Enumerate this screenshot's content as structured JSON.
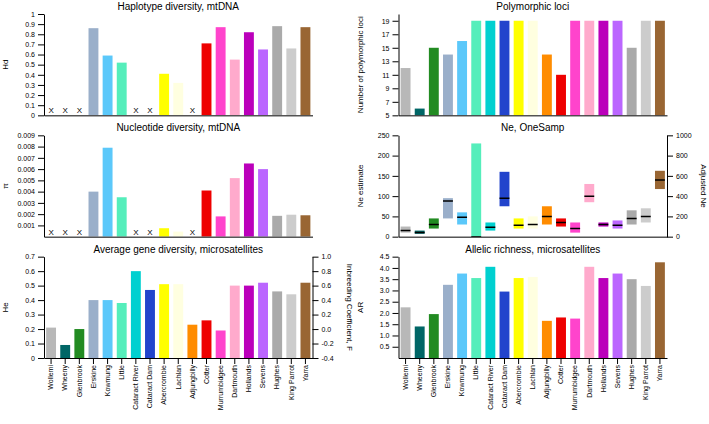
{
  "chart_data": [
    {
      "type": "bar",
      "title": "Haplotype diversity, mtDNA",
      "ylabel": "Hd",
      "categories": [
        "Wollemi",
        "Wheeny",
        "Glenbrook",
        "Erskine",
        "Kowmung",
        "Little",
        "Cataract River",
        "Cataract Dam",
        "Abercrombie",
        "Lachlan",
        "Adjungbilly",
        "Cotter",
        "Murrumbidgee",
        "Dartmouth",
        "Hollands",
        "Sevens",
        "Hughes",
        "King Parrot",
        "Yarra"
      ],
      "values": [
        0,
        0,
        0,
        0.86,
        0.59,
        0.52,
        0,
        0,
        0.41,
        0.32,
        0,
        0.71,
        0.87,
        0.55,
        0.82,
        0.65,
        0.88,
        0.66,
        0.87
      ],
      "colors": [
        "#b8b8b8",
        "#006666",
        "#228b22",
        "#9aafca",
        "#5bc8fa",
        "#55eebb",
        "#00d0d0",
        "#2244cc",
        "#ffff00",
        "#ffffe0",
        "#ff8c00",
        "#ee0000",
        "#ff44cc",
        "#ffaacc",
        "#bb00bb",
        "#bb66ff",
        "#aaaaaa",
        "#cccccc",
        "#996633"
      ],
      "ylim": [
        0,
        1
      ],
      "yticks": [
        0,
        0.1,
        0.2,
        0.3,
        0.4,
        0.5,
        0.6,
        0.7,
        0.8,
        0.9,
        1
      ],
      "tick_labels": "y",
      "annotations": [
        {
          "text": "X",
          "category": "Wollemi"
        },
        {
          "text": "X",
          "category": "Wheeny"
        },
        {
          "text": "X",
          "category": "Glenbrook"
        },
        {
          "text": "X",
          "category": "Cataract River"
        },
        {
          "text": "X",
          "category": "Cataract Dam"
        },
        {
          "text": "X",
          "category": "Adjungbilly"
        }
      ]
    },
    {
      "type": "bar",
      "title": "Nucleotide diversity, mtDNA",
      "ylabel": "π",
      "categories": [
        "Wollemi",
        "Wheeny",
        "Glenbrook",
        "Erskine",
        "Kowmung",
        "Little",
        "Cataract River",
        "Cataract Dam",
        "Abercrombie",
        "Lachlan",
        "Adjungbilly",
        "Cotter",
        "Murrumbidgee",
        "Dartmouth",
        "Hollands",
        "Sevens",
        "Hughes",
        "King Parrot",
        "Yarra"
      ],
      "values": [
        0,
        0,
        0,
        0.004,
        0.0079,
        0.0035,
        0,
        0,
        0.00075,
        0.00045,
        0,
        0.0041,
        0.0018,
        0.0052,
        0.0065,
        0.006,
        0.00185,
        0.00195,
        0.0019
      ],
      "colors": [
        "#b8b8b8",
        "#006666",
        "#228b22",
        "#9aafca",
        "#5bc8fa",
        "#55eebb",
        "#00d0d0",
        "#2244cc",
        "#ffff00",
        "#ffffe0",
        "#ff8c00",
        "#ee0000",
        "#ff44cc",
        "#ffaacc",
        "#bb00bb",
        "#bb66ff",
        "#aaaaaa",
        "#cccccc",
        "#996633"
      ],
      "ylim": [
        0,
        0.009
      ],
      "yticks": [
        0.001,
        0.002,
        0.003,
        0.004,
        0.005,
        0.006,
        0.007,
        0.008,
        0.009
      ],
      "tick_labels": "y",
      "annotations": [
        {
          "text": "X",
          "category": "Wollemi"
        },
        {
          "text": "X",
          "category": "Wheeny"
        },
        {
          "text": "X",
          "category": "Glenbrook"
        },
        {
          "text": "X",
          "category": "Cataract River"
        },
        {
          "text": "X",
          "category": "Cataract Dam"
        },
        {
          "text": "X",
          "category": "Adjungbilly"
        }
      ]
    },
    {
      "type": "bar",
      "title": "Average gene diversity, microsatellites",
      "ylabel": "He",
      "y2label": "Inbreeding Coefficient, F",
      "categories": [
        "Wollemi",
        "Wheeny",
        "Glenbrook",
        "Erskine",
        "Kowmung",
        "Little",
        "Cataract River",
        "Cataract Dam",
        "Abercrombie",
        "Lachlan",
        "Adjungbilly",
        "Cotter",
        "Murrumbidgee",
        "Dartmouth",
        "Hollands",
        "Sevens",
        "Hughes",
        "King Parrot",
        "Yarra"
      ],
      "values": [
        0.21,
        0.09,
        0.2,
        0.4,
        0.4,
        0.38,
        0.6,
        0.47,
        0.51,
        0.51,
        0.23,
        0.26,
        0.19,
        0.5,
        0.5,
        0.52,
        0.46,
        0.44,
        0.52
      ],
      "colors": [
        "#b8b8b8",
        "#006666",
        "#228b22",
        "#9aafca",
        "#5bc8fa",
        "#55eebb",
        "#00d0d0",
        "#2244cc",
        "#ffff00",
        "#ffffe0",
        "#ff8c00",
        "#ee0000",
        "#ff44cc",
        "#ffaacc",
        "#bb00bb",
        "#bb66ff",
        "#aaaaaa",
        "#cccccc",
        "#996633"
      ],
      "ylim": [
        0,
        0.7
      ],
      "yticks": [
        0,
        0.1,
        0.2,
        0.3,
        0.4,
        0.5,
        0.6,
        0.7
      ],
      "y2lim": [
        -0.4,
        1
      ],
      "y2ticks": [
        -0.4,
        -0.2,
        {
          "value": 0,
          "label": "0.0"
        },
        0.2,
        0.4,
        0.6,
        0.8,
        {
          "value": 1,
          "label": "1.0"
        }
      ]
    },
    {
      "type": "bar",
      "title": "Polymorphic loci",
      "ylabel": "Number of polymorphic loci",
      "categories": [
        "Wollemi",
        "Wheeny",
        "Glenbrook",
        "Erskine",
        "Kowmung",
        "Little",
        "Cataract River",
        "Cataract Dam",
        "Abercrombie",
        "Lachlan",
        "Adjungbilly",
        "Cotter",
        "Murrumbidgee",
        "Dartmouth",
        "Hollands",
        "Sevens",
        "Hughes",
        "King Parrot",
        "Yarra"
      ],
      "values": [
        12,
        6,
        15,
        14,
        16,
        19,
        19,
        19,
        19,
        19,
        14,
        11,
        19,
        19,
        19,
        19,
        15,
        19,
        19
      ],
      "colors": [
        "#b8b8b8",
        "#006666",
        "#228b22",
        "#9aafca",
        "#5bc8fa",
        "#55eebb",
        "#00d0d0",
        "#2244cc",
        "#ffff00",
        "#ffffe0",
        "#ff8c00",
        "#ee0000",
        "#ff44cc",
        "#ffaacc",
        "#bb00bb",
        "#bb66ff",
        "#aaaaaa",
        "#cccccc",
        "#996633"
      ],
      "ylim": [
        5,
        20
      ],
      "yticks": [
        5,
        7,
        9,
        11,
        13,
        15,
        17,
        19
      ],
      "tick_labels": "y"
    },
    {
      "type": "bar",
      "title": "Ne, OneSamp",
      "ylabel": "Ne estimate",
      "y2label": "Adjusted Ne",
      "categories": [
        "Wollemi",
        "Wheeny",
        "Glenbrook",
        "Erskine",
        "Kowmung",
        "Little",
        "Cataract River",
        "Cataract Dam",
        "Abercrombie",
        "Lachlan",
        "Adjungbilly",
        "Cotter",
        "Murrumbidgee",
        "Dartmouth",
        "Hollands",
        "Sevens",
        "Hughes",
        "King Parrot",
        "Yarra"
      ],
      "colors": [
        "#b8b8b8",
        "#006666",
        "#228b22",
        "#9aafca",
        "#5bc8fa",
        "#55eebb",
        "#00d0d0",
        "#2244cc",
        "#ffff00",
        "#ffffe0",
        "#ff8c00",
        "#ee0000",
        "#ff44cc",
        "#ffaacc",
        "#bb00bb",
        "#bb66ff",
        "#aaaaaa",
        "#cccccc",
        "#996633"
      ],
      "ylim": [
        0,
        250
      ],
      "yticks": [
        0,
        50,
        100,
        150,
        200,
        250
      ],
      "y2lim": [
        0,
        1000
      ],
      "y2ticks": [
        0,
        200,
        400,
        600,
        800,
        1000
      ],
      "tick_labels": "y",
      "series": [
        {
          "axis": "y",
          "low": [
            10,
            7,
            20,
            45,
            30,
            0,
            15,
            75,
            20,
            20,
            30,
            25,
            10,
            85,
            25,
            20,
            30,
            35,
            null
          ],
          "high": [
            25,
            15,
            45,
            95,
            60,
            230,
            35,
            160,
            45,
            50,
            75,
            45,
            35,
            130,
            35,
            40,
            65,
            70,
            null
          ],
          "values": [
            15,
            10,
            30,
            88,
            48,
            0,
            23,
            95,
            28,
            30,
            50,
            35,
            20,
            100,
            30,
            28,
            45,
            50,
            null
          ]
        },
        {
          "axis": "y2",
          "low": [
            null,
            null,
            null,
            null,
            null,
            null,
            null,
            null,
            null,
            null,
            null,
            null,
            null,
            null,
            null,
            null,
            null,
            null,
            470
          ],
          "high": [
            null,
            null,
            null,
            null,
            null,
            null,
            null,
            null,
            null,
            null,
            null,
            null,
            null,
            null,
            null,
            null,
            null,
            null,
            650
          ],
          "values": [
            null,
            null,
            null,
            null,
            null,
            null,
            null,
            null,
            null,
            null,
            null,
            null,
            null,
            null,
            null,
            null,
            null,
            null,
            560
          ]
        }
      ]
    },
    {
      "type": "bar",
      "title": "Allelic richness, microsatellites",
      "ylabel": "AR",
      "categories": [
        "Wollemi",
        "Wheeny",
        "Glenbrook",
        "Erskine",
        "Kowmung",
        "Little",
        "Cataract River",
        "Cataract Dam",
        "Abercrombie",
        "Lachlan",
        "Adjungbilly",
        "Cotter",
        "Murrumbidgee",
        "Dartmouth",
        "Hollands",
        "Sevens",
        "Hughes",
        "King Parrot",
        "Yarra"
      ],
      "values": [
        2.25,
        1.4,
        1.95,
        3.25,
        3.75,
        3.55,
        4.05,
        2.95,
        3.55,
        3.6,
        1.65,
        1.8,
        1.75,
        4.05,
        3.55,
        3.75,
        3.5,
        3.2,
        4.25
      ],
      "colors": [
        "#b8b8b8",
        "#006666",
        "#228b22",
        "#9aafca",
        "#5bc8fa",
        "#55eebb",
        "#00d0d0",
        "#2244cc",
        "#ffff00",
        "#ffffe0",
        "#ff8c00",
        "#ee0000",
        "#ff44cc",
        "#ffaacc",
        "#bb00bb",
        "#bb66ff",
        "#aaaaaa",
        "#cccccc",
        "#996633"
      ],
      "ylim": [
        0,
        4.5
      ],
      "yticks": [
        0.5,
        {
          "value": 1,
          "label": "1.0"
        },
        1.5,
        {
          "value": 2,
          "label": "2.0"
        },
        2.5,
        {
          "value": 3,
          "label": "3.0"
        },
        3.5,
        {
          "value": 4,
          "label": "4.0"
        },
        4.5
      ]
    }
  ]
}
